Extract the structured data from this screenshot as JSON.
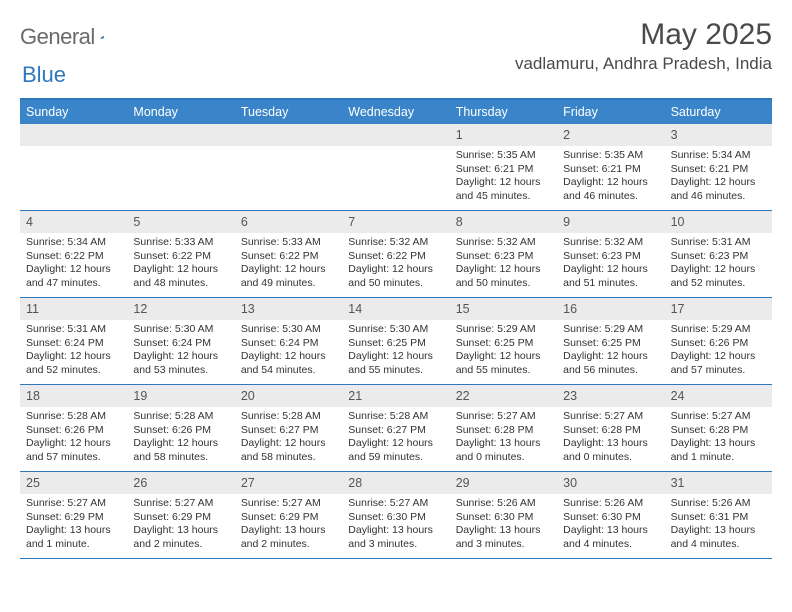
{
  "brand": {
    "part1": "General",
    "part2": "Blue"
  },
  "title": "May 2025",
  "location": "vadlamuru, Andhra Pradesh, India",
  "colors": {
    "header_bg": "#3a85c9",
    "border": "#2f78bd",
    "daynum_bg": "#ebebeb",
    "text": "#333333"
  },
  "day_labels": [
    "Sunday",
    "Monday",
    "Tuesday",
    "Wednesday",
    "Thursday",
    "Friday",
    "Saturday"
  ],
  "weeks": [
    [
      {
        "empty": true
      },
      {
        "empty": true
      },
      {
        "empty": true
      },
      {
        "empty": true
      },
      {
        "day": "1",
        "sunrise": "Sunrise: 5:35 AM",
        "sunset": "Sunset: 6:21 PM",
        "daylight": "Daylight: 12 hours and 45 minutes."
      },
      {
        "day": "2",
        "sunrise": "Sunrise: 5:35 AM",
        "sunset": "Sunset: 6:21 PM",
        "daylight": "Daylight: 12 hours and 46 minutes."
      },
      {
        "day": "3",
        "sunrise": "Sunrise: 5:34 AM",
        "sunset": "Sunset: 6:21 PM",
        "daylight": "Daylight: 12 hours and 46 minutes."
      }
    ],
    [
      {
        "day": "4",
        "sunrise": "Sunrise: 5:34 AM",
        "sunset": "Sunset: 6:22 PM",
        "daylight": "Daylight: 12 hours and 47 minutes."
      },
      {
        "day": "5",
        "sunrise": "Sunrise: 5:33 AM",
        "sunset": "Sunset: 6:22 PM",
        "daylight": "Daylight: 12 hours and 48 minutes."
      },
      {
        "day": "6",
        "sunrise": "Sunrise: 5:33 AM",
        "sunset": "Sunset: 6:22 PM",
        "daylight": "Daylight: 12 hours and 49 minutes."
      },
      {
        "day": "7",
        "sunrise": "Sunrise: 5:32 AM",
        "sunset": "Sunset: 6:22 PM",
        "daylight": "Daylight: 12 hours and 50 minutes."
      },
      {
        "day": "8",
        "sunrise": "Sunrise: 5:32 AM",
        "sunset": "Sunset: 6:23 PM",
        "daylight": "Daylight: 12 hours and 50 minutes."
      },
      {
        "day": "9",
        "sunrise": "Sunrise: 5:32 AM",
        "sunset": "Sunset: 6:23 PM",
        "daylight": "Daylight: 12 hours and 51 minutes."
      },
      {
        "day": "10",
        "sunrise": "Sunrise: 5:31 AM",
        "sunset": "Sunset: 6:23 PM",
        "daylight": "Daylight: 12 hours and 52 minutes."
      }
    ],
    [
      {
        "day": "11",
        "sunrise": "Sunrise: 5:31 AM",
        "sunset": "Sunset: 6:24 PM",
        "daylight": "Daylight: 12 hours and 52 minutes."
      },
      {
        "day": "12",
        "sunrise": "Sunrise: 5:30 AM",
        "sunset": "Sunset: 6:24 PM",
        "daylight": "Daylight: 12 hours and 53 minutes."
      },
      {
        "day": "13",
        "sunrise": "Sunrise: 5:30 AM",
        "sunset": "Sunset: 6:24 PM",
        "daylight": "Daylight: 12 hours and 54 minutes."
      },
      {
        "day": "14",
        "sunrise": "Sunrise: 5:30 AM",
        "sunset": "Sunset: 6:25 PM",
        "daylight": "Daylight: 12 hours and 55 minutes."
      },
      {
        "day": "15",
        "sunrise": "Sunrise: 5:29 AM",
        "sunset": "Sunset: 6:25 PM",
        "daylight": "Daylight: 12 hours and 55 minutes."
      },
      {
        "day": "16",
        "sunrise": "Sunrise: 5:29 AM",
        "sunset": "Sunset: 6:25 PM",
        "daylight": "Daylight: 12 hours and 56 minutes."
      },
      {
        "day": "17",
        "sunrise": "Sunrise: 5:29 AM",
        "sunset": "Sunset: 6:26 PM",
        "daylight": "Daylight: 12 hours and 57 minutes."
      }
    ],
    [
      {
        "day": "18",
        "sunrise": "Sunrise: 5:28 AM",
        "sunset": "Sunset: 6:26 PM",
        "daylight": "Daylight: 12 hours and 57 minutes."
      },
      {
        "day": "19",
        "sunrise": "Sunrise: 5:28 AM",
        "sunset": "Sunset: 6:26 PM",
        "daylight": "Daylight: 12 hours and 58 minutes."
      },
      {
        "day": "20",
        "sunrise": "Sunrise: 5:28 AM",
        "sunset": "Sunset: 6:27 PM",
        "daylight": "Daylight: 12 hours and 58 minutes."
      },
      {
        "day": "21",
        "sunrise": "Sunrise: 5:28 AM",
        "sunset": "Sunset: 6:27 PM",
        "daylight": "Daylight: 12 hours and 59 minutes."
      },
      {
        "day": "22",
        "sunrise": "Sunrise: 5:27 AM",
        "sunset": "Sunset: 6:28 PM",
        "daylight": "Daylight: 13 hours and 0 minutes."
      },
      {
        "day": "23",
        "sunrise": "Sunrise: 5:27 AM",
        "sunset": "Sunset: 6:28 PM",
        "daylight": "Daylight: 13 hours and 0 minutes."
      },
      {
        "day": "24",
        "sunrise": "Sunrise: 5:27 AM",
        "sunset": "Sunset: 6:28 PM",
        "daylight": "Daylight: 13 hours and 1 minute."
      }
    ],
    [
      {
        "day": "25",
        "sunrise": "Sunrise: 5:27 AM",
        "sunset": "Sunset: 6:29 PM",
        "daylight": "Daylight: 13 hours and 1 minute."
      },
      {
        "day": "26",
        "sunrise": "Sunrise: 5:27 AM",
        "sunset": "Sunset: 6:29 PM",
        "daylight": "Daylight: 13 hours and 2 minutes."
      },
      {
        "day": "27",
        "sunrise": "Sunrise: 5:27 AM",
        "sunset": "Sunset: 6:29 PM",
        "daylight": "Daylight: 13 hours and 2 minutes."
      },
      {
        "day": "28",
        "sunrise": "Sunrise: 5:27 AM",
        "sunset": "Sunset: 6:30 PM",
        "daylight": "Daylight: 13 hours and 3 minutes."
      },
      {
        "day": "29",
        "sunrise": "Sunrise: 5:26 AM",
        "sunset": "Sunset: 6:30 PM",
        "daylight": "Daylight: 13 hours and 3 minutes."
      },
      {
        "day": "30",
        "sunrise": "Sunrise: 5:26 AM",
        "sunset": "Sunset: 6:30 PM",
        "daylight": "Daylight: 13 hours and 4 minutes."
      },
      {
        "day": "31",
        "sunrise": "Sunrise: 5:26 AM",
        "sunset": "Sunset: 6:31 PM",
        "daylight": "Daylight: 13 hours and 4 minutes."
      }
    ]
  ]
}
